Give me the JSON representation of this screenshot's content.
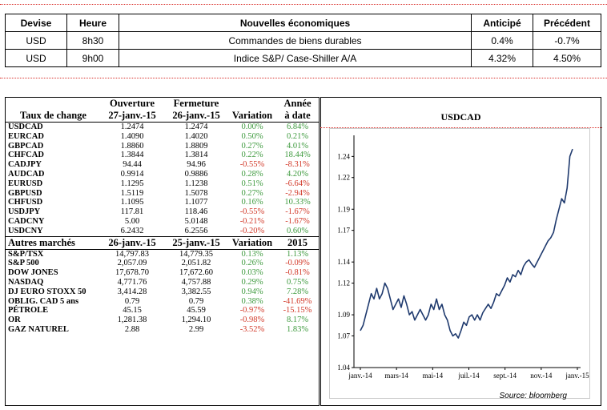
{
  "news": {
    "headers": [
      "Devise",
      "Heure",
      "Nouvelles économiques",
      "Anticipé",
      "Précédent"
    ],
    "rows": [
      [
        "USD",
        "8h30",
        "Commandes de biens durables",
        "0.4%",
        "-0.7%"
      ],
      [
        "USD",
        "9h00",
        "Indice S&P/ Case-Shiller A/A",
        "4.32%",
        "4.50%"
      ]
    ]
  },
  "fx": {
    "header_row1": [
      "",
      "Ouverture",
      "Fermeture",
      "",
      "Année"
    ],
    "header_row2": [
      "Taux de change",
      "27-janv.-15",
      "26-janv.-15",
      "Variation",
      "à date"
    ],
    "rows": [
      [
        "USDCAD",
        "1.2474",
        "1.2474",
        "0.00%",
        "6.84%"
      ],
      [
        "EURCAD",
        "1.4090",
        "1.4020",
        "0.50%",
        "0.21%"
      ],
      [
        "GBPCAD",
        "1.8860",
        "1.8809",
        "0.27%",
        "4.01%"
      ],
      [
        "CHFCAD",
        "1.3844",
        "1.3814",
        "0.22%",
        "18.44%"
      ],
      [
        "CADJPY",
        "94.44",
        "94.96",
        "-0.55%",
        "-8.31%"
      ],
      [
        "AUDCAD",
        "0.9914",
        "0.9886",
        "0.28%",
        "4.20%"
      ],
      [
        "EURUSD",
        "1.1295",
        "1.1238",
        "0.51%",
        "-6.64%"
      ],
      [
        "GBPUSD",
        "1.5119",
        "1.5078",
        "0.27%",
        "-2.94%"
      ],
      [
        "CHFUSD",
        "1.1095",
        "1.1077",
        "0.16%",
        "10.33%"
      ],
      [
        "USDJPY",
        "117.81",
        "118.46",
        "-0.55%",
        "-1.67%"
      ],
      [
        "CADCNY",
        "5.00",
        "5.0148",
        "-0.21%",
        "-1.67%"
      ],
      [
        "USDCNY",
        "6.2432",
        "6.2556",
        "-0.20%",
        "0.60%"
      ]
    ]
  },
  "markets": {
    "header": [
      "Autres marchés",
      "26-janv.-15",
      "25-janv.-15",
      "Variation",
      "2015"
    ],
    "rows": [
      [
        "S&P/TSX",
        "14,797.83",
        "14,779.35",
        "0.13%",
        "1.13%"
      ],
      [
        "S&P 500",
        "2,057.09",
        "2,051.82",
        "0.26%",
        "-0.09%"
      ],
      [
        "DOW JONES",
        "17,678.70",
        "17,672.60",
        "0.03%",
        "-0.81%"
      ],
      [
        "NASDAQ",
        "4,771.76",
        "4,757.88",
        "0.29%",
        "0.75%"
      ],
      [
        "DJ EURO STOXX 50",
        "3,414.28",
        "3,382.55",
        "0.94%",
        "7.28%"
      ],
      [
        "OBLIG. CAD 5 ans",
        "0.79",
        "0.79",
        "0.38%",
        "-41.69%"
      ],
      [
        "PÉTROLE",
        "45.15",
        "45.59",
        "-0.97%",
        "-15.15%"
      ],
      [
        "OR",
        "1,281.38",
        "1,294.10",
        "-0.98%",
        "8.17%"
      ],
      [
        "GAZ NATUREL",
        "2.88",
        "2.99",
        "-3.52%",
        "1.83%"
      ]
    ]
  },
  "colors": {
    "positive": "#3e9a3e",
    "negative": "#d23a2a",
    "line": "#1f3a6e",
    "separator": "#d9302c"
  },
  "chart_data": {
    "type": "line",
    "title": "USDCAD",
    "source": "Source: bloomberg",
    "xlabel": "",
    "ylabel": "",
    "ylim": [
      1.04,
      1.26
    ],
    "yticks": [
      "1.04",
      "1.07",
      "1.09",
      "1.12",
      "1.14",
      "1.17",
      "1.19",
      "1.22",
      "1.24"
    ],
    "xticks": [
      "janv.-14",
      "mars-14",
      "mai-14",
      "juil.-14",
      "sept.-14",
      "nov.-14",
      "janv.-15"
    ],
    "series": [
      {
        "values": [
          1.075,
          1.08,
          1.09,
          1.1,
          1.11,
          1.105,
          1.115,
          1.105,
          1.11,
          1.12,
          1.115,
          1.105,
          1.095,
          1.1,
          1.105,
          1.097,
          1.108,
          1.1,
          1.09,
          1.093,
          1.085,
          1.09,
          1.095,
          1.09,
          1.085,
          1.09,
          1.1,
          1.095,
          1.105,
          1.095,
          1.1,
          1.09,
          1.085,
          1.075,
          1.07,
          1.072,
          1.068,
          1.075,
          1.083,
          1.08,
          1.088,
          1.09,
          1.085,
          1.09,
          1.085,
          1.092,
          1.096,
          1.1,
          1.096,
          1.102,
          1.11,
          1.108,
          1.113,
          1.118,
          1.125,
          1.121,
          1.128,
          1.126,
          1.132,
          1.128,
          1.136,
          1.14,
          1.142,
          1.138,
          1.135,
          1.14,
          1.145,
          1.15,
          1.155,
          1.16,
          1.163,
          1.168,
          1.18,
          1.19,
          1.2,
          1.196,
          1.21,
          1.24,
          1.247
        ]
      }
    ]
  }
}
